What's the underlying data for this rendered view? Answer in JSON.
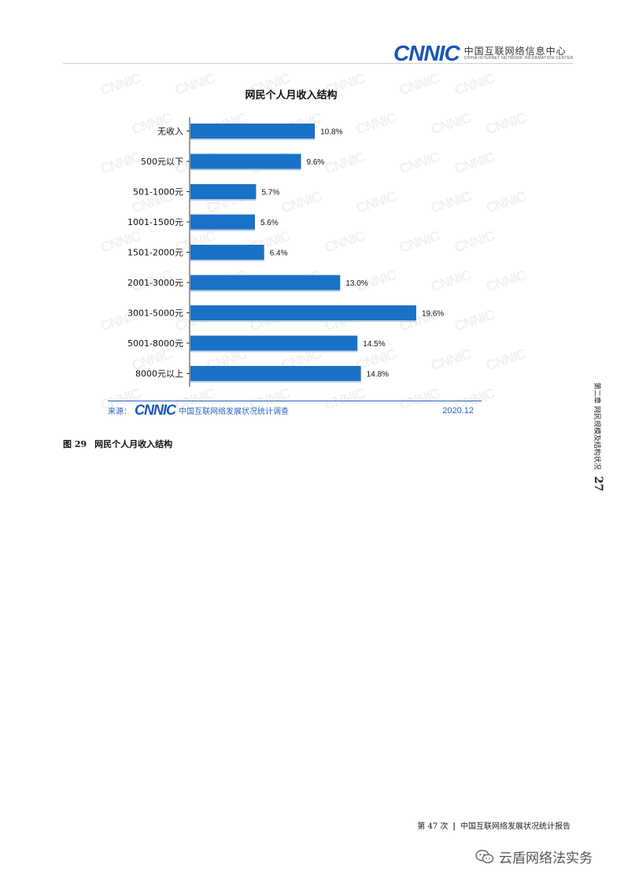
{
  "header": {
    "logo": "CNNIC",
    "org_cn": "中国互联网络信息中心",
    "org_en": "CHINA INTERNET NETWORK INFORMATION CENTER"
  },
  "chart_data": {
    "type": "bar",
    "orientation": "horizontal",
    "title": "网民个人月收入结构",
    "categories": [
      "无收入",
      "500元以下",
      "501-1000元",
      "1001-1500元",
      "1501-2000元",
      "2001-3000元",
      "3001-5000元",
      "5001-8000元",
      "8000元以上"
    ],
    "values": [
      10.8,
      9.6,
      5.7,
      5.6,
      6.4,
      13.0,
      19.6,
      14.5,
      14.8
    ],
    "value_labels": [
      "10.8%",
      "9.6%",
      "5.7%",
      "5.6%",
      "6.4%",
      "13.0%",
      "19.6%",
      "14.5%",
      "14.8%"
    ],
    "xlim": [
      0,
      25
    ],
    "grid": false,
    "bar_color": "#1a72c8"
  },
  "source": {
    "prefix": "来源：",
    "logo": "CNNIC",
    "text": "中国互联网络发展状况统计调查",
    "date": "2020.12"
  },
  "caption": {
    "figure_no": "图 29",
    "title": "网民个人月收入结构"
  },
  "side_tab": {
    "page_no": "27",
    "chapter": "第二章  网民规模及结构状况"
  },
  "footer": {
    "edition": "第 47 次",
    "separator": "|",
    "report": "中国互联网络发展状况统计报告"
  },
  "wechat": {
    "icon": "wechat-icon",
    "account": "云盾网络法实务"
  }
}
